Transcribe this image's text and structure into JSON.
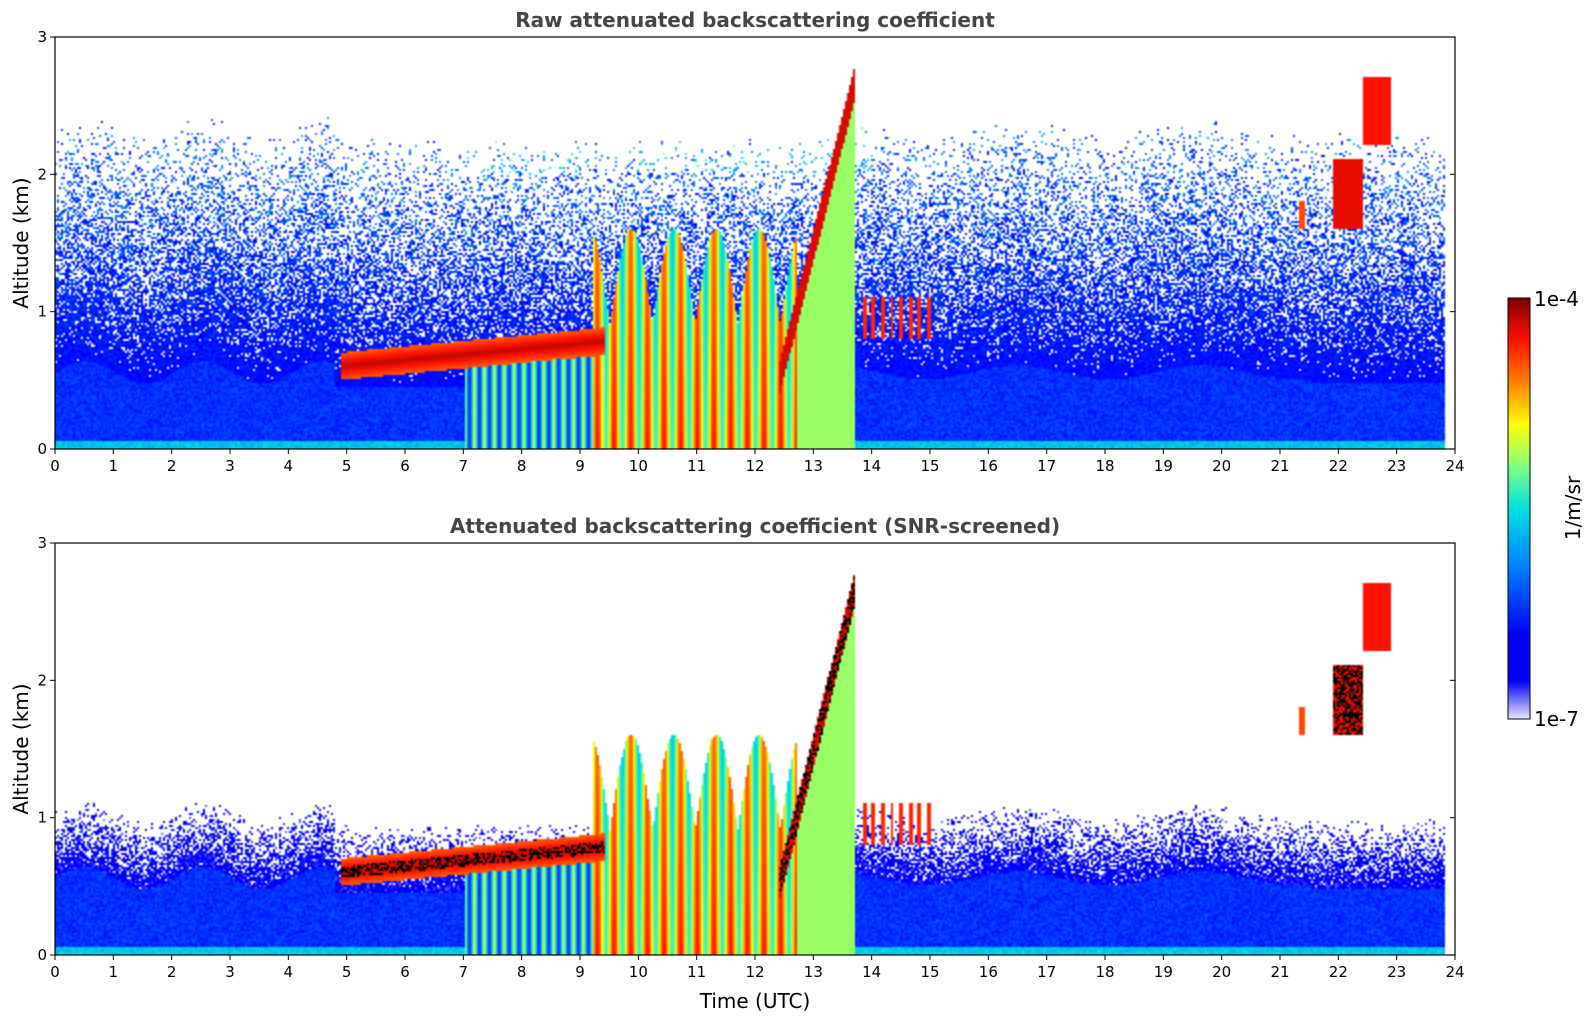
{
  "chart_data": [
    {
      "type": "heatmap",
      "title": "Raw attenuated backscattering coefficient",
      "xlabel": "",
      "ylabel": "Altitude (km)",
      "xlim": [
        0,
        24
      ],
      "ylim": [
        0,
        3
      ],
      "xticks": [
        "0",
        "1",
        "2",
        "3",
        "4",
        "5",
        "6",
        "7",
        "8",
        "9",
        "10",
        "11",
        "12",
        "13",
        "14",
        "15",
        "16",
        "17",
        "18",
        "19",
        "20",
        "21",
        "22",
        "23",
        "24"
      ],
      "yticks": [
        "0",
        "1",
        "2",
        "3"
      ],
      "screened": false,
      "features": [
        {
          "kind": "aerosol_boundary_layer",
          "t_start": 0,
          "t_end": 23.8,
          "top_km": 0.55
        },
        {
          "kind": "cloud_layer",
          "t_start": 4.9,
          "t_end": 9.3,
          "base_km": 0.5,
          "top_km": 0.8
        },
        {
          "kind": "convective_plumes",
          "t_start": 9.2,
          "t_end": 12.7,
          "top_km": 1.7
        },
        {
          "kind": "rising_layer",
          "t_start": 12.4,
          "t_end": 13.6,
          "start_km": 0.5,
          "end_km": 2.6
        },
        {
          "kind": "elevated_cloud",
          "t_start": 21.3,
          "t_end": 23.0,
          "base_km": 1.6,
          "top_km": 2.8
        }
      ]
    },
    {
      "type": "heatmap",
      "title": "Attenuated backscattering coefficient (SNR-screened)",
      "xlabel": "Time (UTC)",
      "ylabel": "Altitude (km)",
      "xlim": [
        0,
        24
      ],
      "ylim": [
        0,
        3
      ],
      "xticks": [
        "0",
        "1",
        "2",
        "3",
        "4",
        "5",
        "6",
        "7",
        "8",
        "9",
        "10",
        "11",
        "12",
        "13",
        "14",
        "15",
        "16",
        "17",
        "18",
        "19",
        "20",
        "21",
        "22",
        "23",
        "24"
      ],
      "yticks": [
        "0",
        "1",
        "2",
        "3"
      ],
      "screened": true
    }
  ],
  "colorbar": {
    "label": "1/m/sr",
    "max_label": "1e-4",
    "min_label": "1e-7",
    "colormap": "jet",
    "low_color": "#e6e6ff",
    "high_color": "#800000"
  }
}
